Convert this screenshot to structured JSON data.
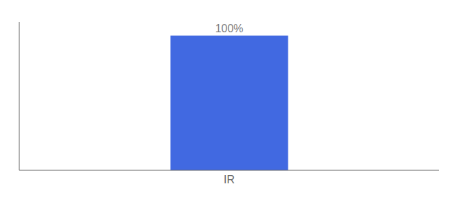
{
  "chart_data": {
    "type": "bar",
    "categories": [
      "IR"
    ],
    "values": [
      100
    ],
    "value_labels": [
      "100%"
    ],
    "data_labels": true,
    "color": "#4169e1",
    "ylim": [
      0,
      110
    ],
    "yticks": [],
    "tick_labels": "x"
  }
}
